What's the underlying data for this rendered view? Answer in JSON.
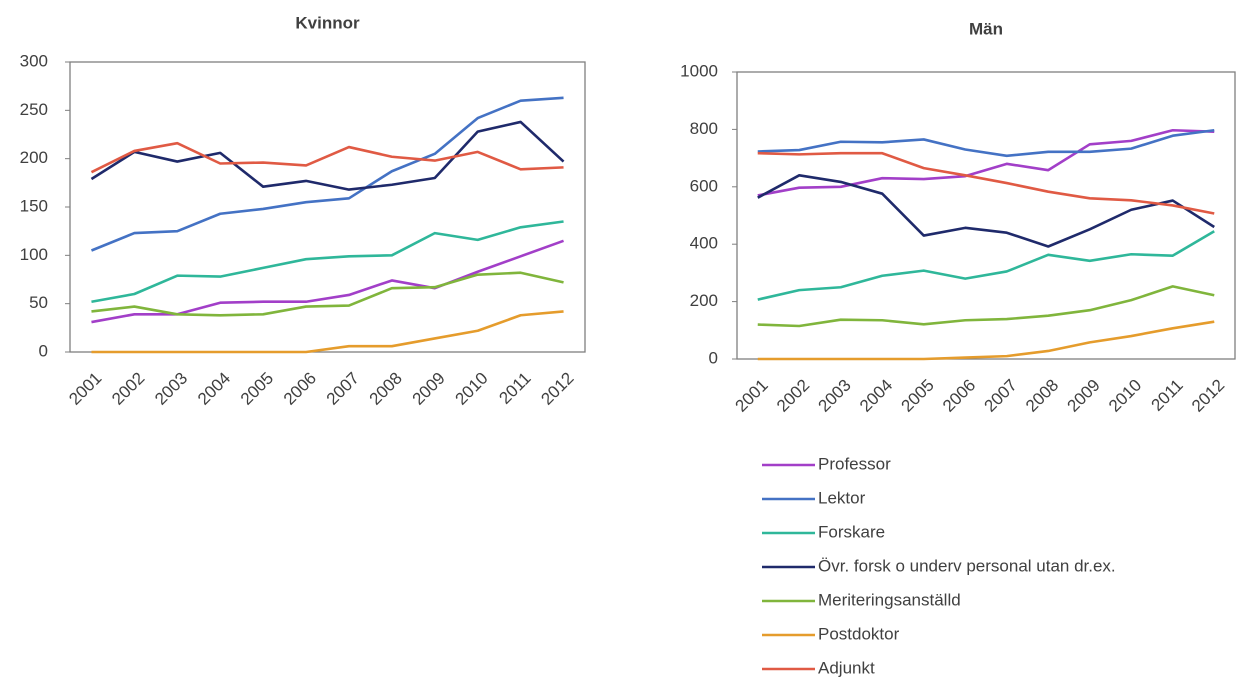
{
  "chart_data": [
    {
      "type": "line",
      "title": "Kvinnor",
      "categories": [
        "2001",
        "2002",
        "2003",
        "2004",
        "2005",
        "2006",
        "2007",
        "2008",
        "2009",
        "2010",
        "2011",
        "2012"
      ],
      "ylim": [
        0,
        300
      ],
      "yticks": [
        0,
        50,
        100,
        150,
        200,
        250,
        300
      ],
      "series": [
        {
          "color": "#a23fc8",
          "values": [
            31,
            39,
            39,
            51,
            52,
            52,
            59,
            74,
            66,
            83,
            99,
            115
          ]
        },
        {
          "color": "#4472c4",
          "values": [
            105,
            123,
            125,
            143,
            148,
            155,
            159,
            187,
            205,
            242,
            260,
            263
          ]
        },
        {
          "color": "#2fb79a",
          "values": [
            52,
            60,
            79,
            78,
            87,
            96,
            99,
            100,
            123,
            116,
            129,
            135
          ]
        },
        {
          "color": "#1f2a6b",
          "values": [
            179,
            207,
            197,
            206,
            171,
            177,
            168,
            173,
            180,
            228,
            238,
            197
          ]
        },
        {
          "color": "#80b53c",
          "values": [
            42,
            47,
            39,
            38,
            39,
            47,
            48,
            66,
            67,
            80,
            82,
            72
          ]
        },
        {
          "color": "#e59c2c",
          "values": [
            0,
            0,
            0,
            0,
            0,
            0,
            6,
            6,
            14,
            22,
            38,
            42
          ]
        },
        {
          "color": "#e05a44",
          "values": [
            186,
            208,
            216,
            195,
            196,
            193,
            212,
            202,
            198,
            207,
            189,
            191
          ]
        }
      ]
    },
    {
      "type": "line",
      "title": "Män",
      "categories": [
        "2001",
        "2002",
        "2003",
        "2004",
        "2005",
        "2006",
        "2007",
        "2008",
        "2009",
        "2010",
        "2011",
        "2012"
      ],
      "ylim": [
        0,
        1000
      ],
      "yticks": [
        0,
        200,
        400,
        600,
        800,
        1000
      ],
      "legend": "bottom",
      "series": [
        {
          "name": "Professor",
          "color": "#a23fc8",
          "values": [
            570,
            597,
            600,
            630,
            627,
            637,
            680,
            658,
            748,
            760,
            797,
            792
          ]
        },
        {
          "name": "Lektor",
          "color": "#4472c4",
          "values": [
            723,
            728,
            757,
            755,
            765,
            730,
            708,
            722,
            722,
            733,
            778,
            797
          ]
        },
        {
          "name": "Forskare",
          "color": "#2fb79a",
          "values": [
            207,
            240,
            250,
            290,
            308,
            280,
            305,
            363,
            342,
            365,
            360,
            445
          ]
        },
        {
          "name": "Övr. forsk o underv personal utan dr.ex.",
          "color": "#1f2a6b",
          "values": [
            562,
            640,
            617,
            576,
            430,
            457,
            440,
            392,
            452,
            520,
            552,
            460
          ]
        },
        {
          "name": "Meriteringsanställd",
          "color": "#80b53c",
          "values": [
            120,
            115,
            137,
            135,
            121,
            135,
            139,
            151,
            170,
            205,
            253,
            222
          ]
        },
        {
          "name": "Postdoktor",
          "color": "#e59c2c",
          "values": [
            0,
            0,
            0,
            0,
            0,
            5,
            10,
            28,
            58,
            80,
            107,
            130
          ]
        },
        {
          "name": "Adjunkt",
          "color": "#e05a44",
          "values": [
            717,
            713,
            717,
            717,
            665,
            640,
            613,
            583,
            560,
            553,
            535,
            507
          ]
        }
      ]
    }
  ]
}
